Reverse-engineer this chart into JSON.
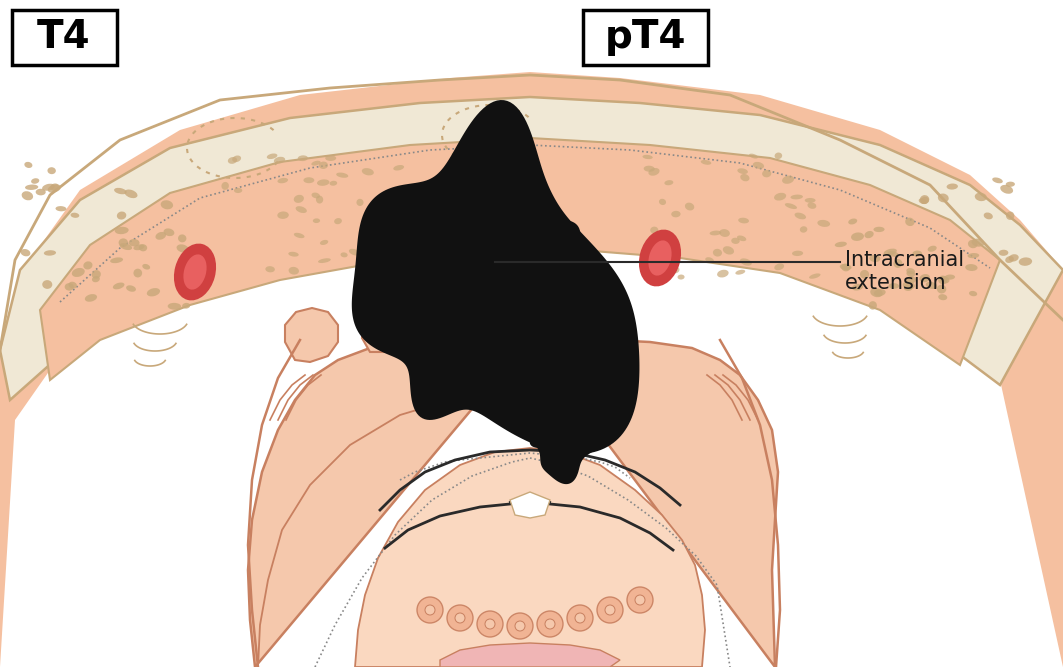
{
  "bg_color": "#ffffff",
  "skin_pink": "#f0b090",
  "skin_pink_light": "#f5c8ac",
  "skin_pink_lighter": "#fad8c0",
  "skull_pink": "#f5c0a0",
  "bone_color": "#f0e8d5",
  "bone_outline": "#c8a87a",
  "red_vessel_outer": "#d04040",
  "red_vessel_inner": "#e86060",
  "tumor_color": "#111111",
  "text_color": "#1a1a1a",
  "label_t4": "T4",
  "label_pt4": "pT4",
  "label_extension": "Intracranial\nextension",
  "line_color": "#2a2a2a",
  "dotted_color": "#888888",
  "neck_outline": "#c88060"
}
